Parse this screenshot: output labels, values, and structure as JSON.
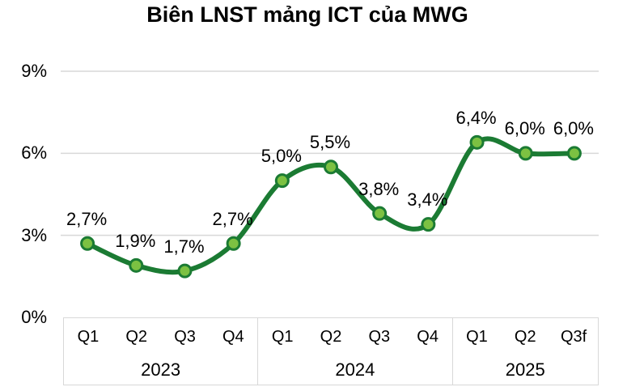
{
  "title": "Biên LNST mảng ICT của MWG",
  "colors": {
    "line": "#1b7b33",
    "marker_fill": "#7cc142",
    "marker_border": "#1b7b33",
    "gridline": "#d8d8d8",
    "text": "#000000",
    "background": "#ffffff"
  },
  "chart_data": {
    "type": "line",
    "title": "Biên LNST mảng ICT của MWG",
    "unit": "%",
    "categories": [
      "Q1",
      "Q2",
      "Q3",
      "Q4",
      "Q1",
      "Q2",
      "Q3",
      "Q4",
      "Q1",
      "Q2",
      "Q3f"
    ],
    "year_groups": [
      {
        "label": "2023",
        "span": 4
      },
      {
        "label": "2024",
        "span": 4
      },
      {
        "label": "2025",
        "span": 3
      }
    ],
    "values": [
      2.7,
      1.9,
      1.7,
      2.7,
      5.0,
      5.5,
      3.8,
      3.4,
      6.4,
      6.0,
      6.0
    ],
    "data_labels": [
      "2,7%",
      "1,9%",
      "1,7%",
      "2,7%",
      "5,0%",
      "5,5%",
      "3,8%",
      "3,4%",
      "6,4%",
      "6,0%",
      "6,0%"
    ],
    "yticks": [
      {
        "label": "0%",
        "value": 0
      },
      {
        "label": "3%",
        "value": 3
      },
      {
        "label": "6%",
        "value": 6
      },
      {
        "label": "9%",
        "value": 9
      }
    ],
    "ylim": [
      0,
      9
    ],
    "grid": "horizontal",
    "legend": "none",
    "line_style": "smooth"
  }
}
